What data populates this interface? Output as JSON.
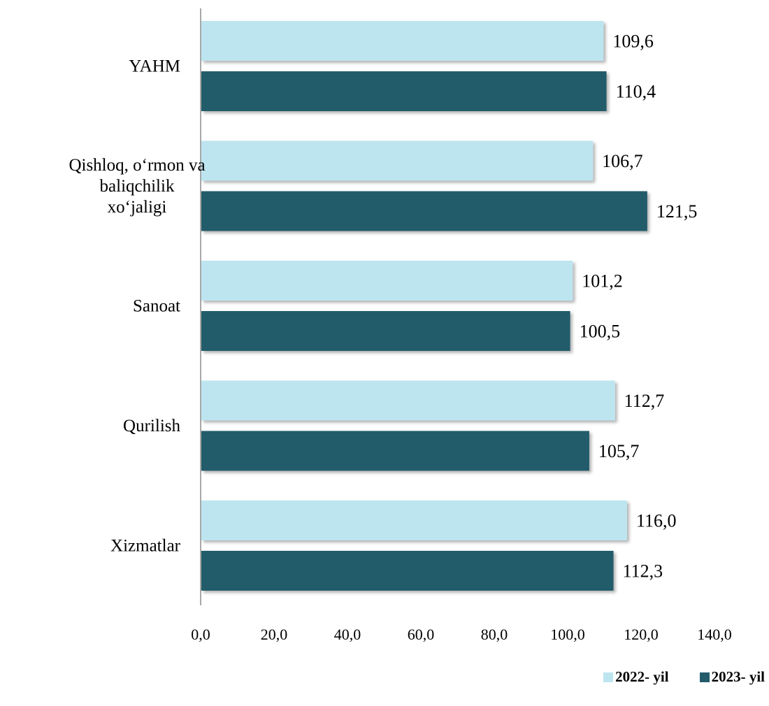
{
  "chart_data": {
    "type": "bar",
    "orientation": "horizontal",
    "categories": [
      [
        "YAHM"
      ],
      [
        "Qishloq, o‘rmon va",
        "baliqchilik",
        "xo‘jaligi"
      ],
      [
        "Sanoat"
      ],
      [
        "Qurilish"
      ],
      [
        "Xizmatlar"
      ]
    ],
    "series": [
      {
        "name": "2022- yil",
        "color": "#bde5f0",
        "values": [
          109.6,
          106.7,
          101.2,
          112.7,
          116.0
        ],
        "labels": [
          "109,6",
          "106,7",
          "101,2",
          "112,7",
          "116,0"
        ]
      },
      {
        "name": "2023- yil",
        "color": "#235b6a",
        "values": [
          110.4,
          121.5,
          100.5,
          105.7,
          112.3
        ],
        "labels": [
          "110,4",
          "121,5",
          "100,5",
          "105,7",
          "112,3"
        ]
      }
    ],
    "xlim": [
      0,
      140
    ],
    "xticks": [
      "0,0",
      "20,0",
      "40,0",
      "60,0",
      "80,0",
      "100,0",
      "120,0",
      "140,0"
    ],
    "grid": false,
    "legend": "bottom-right"
  }
}
